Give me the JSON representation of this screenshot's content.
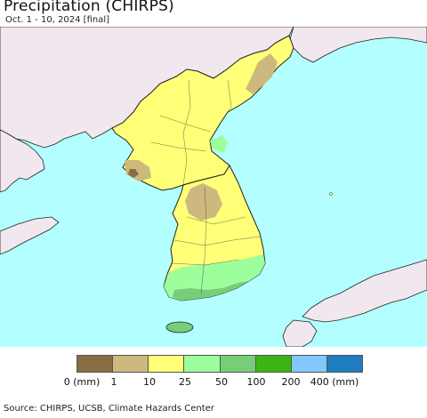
{
  "title": "Precipitation (CHIRPS)",
  "subtitle": "Oct. 1 - 10, 2024 [final]",
  "colors": {
    "ocean": "#b3ffff",
    "foreign_land": "#f0e8ee",
    "border": "#222222"
  },
  "legend": {
    "bins": [
      {
        "color": "#8a6d44",
        "label": "0 (mm)"
      },
      {
        "color": "#cdb97d",
        "label": "1"
      },
      {
        "color": "#ffff78",
        "label": "10"
      },
      {
        "color": "#9cff9c",
        "label": "25"
      },
      {
        "color": "#78cd78",
        "label": "50"
      },
      {
        "color": "#3cb414",
        "label": "100"
      },
      {
        "color": "#82c8ff",
        "label": "200"
      },
      {
        "color": "#1e7dbe",
        "label": "400 (mm)"
      }
    ]
  },
  "source": "Source: CHIRPS, UCSB, Climate Hazards Center"
}
